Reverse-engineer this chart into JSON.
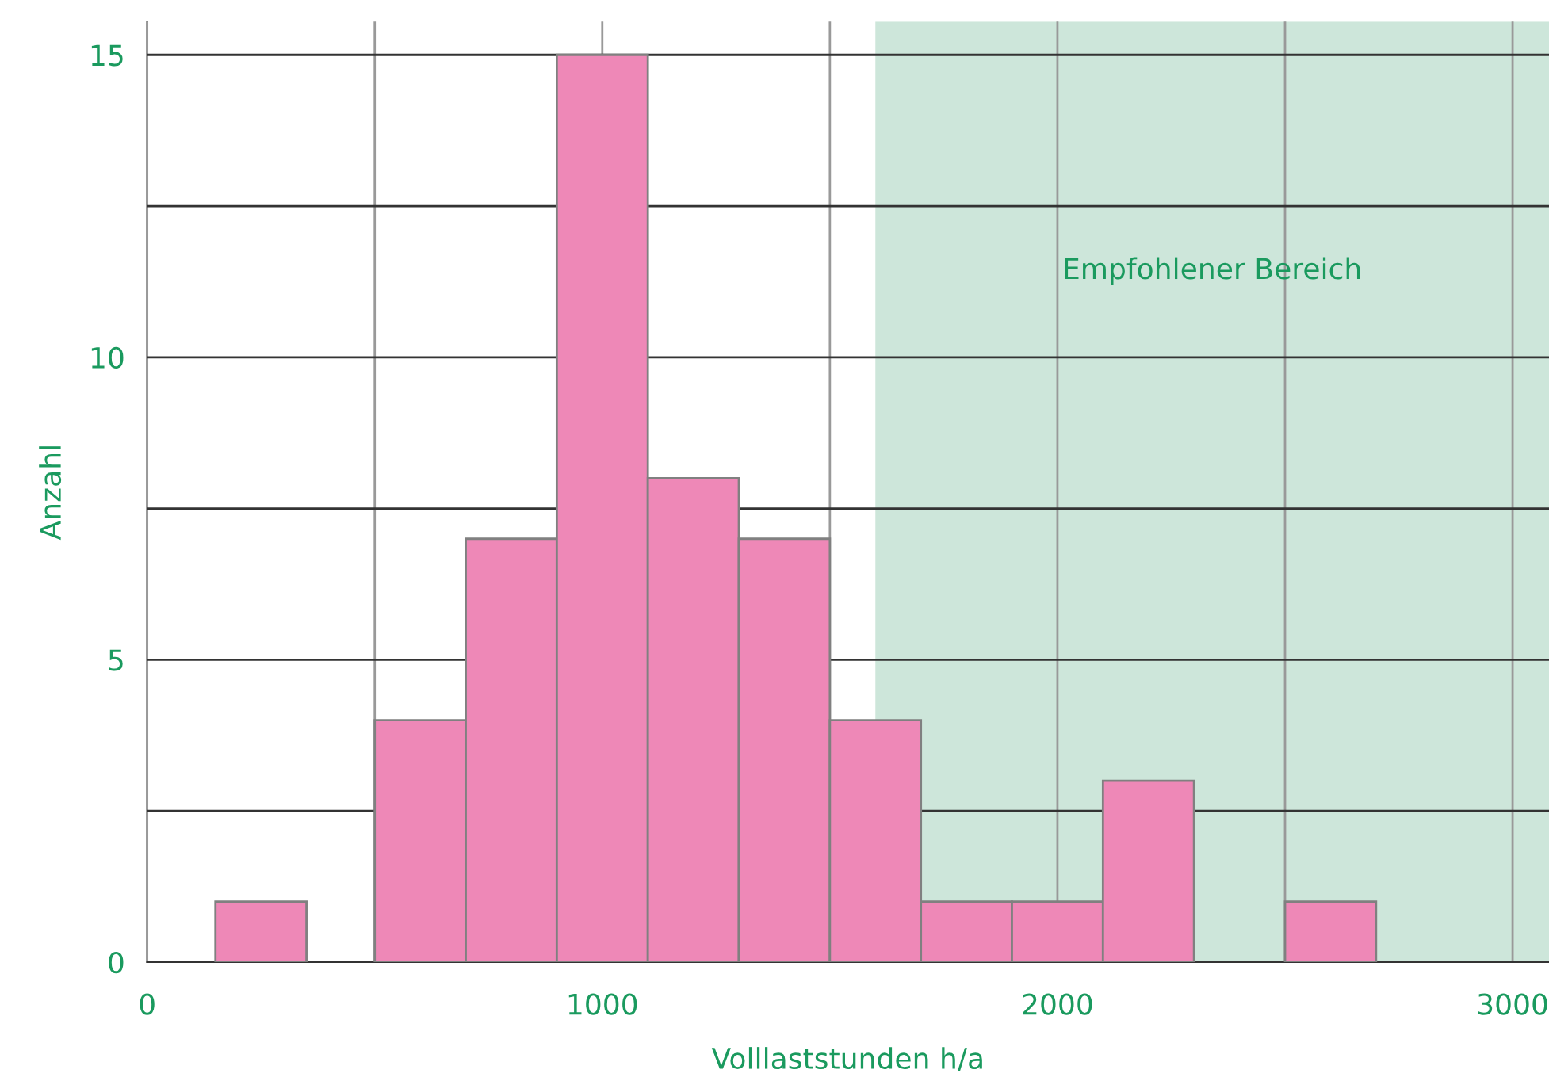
{
  "chart_data": {
    "type": "histogram",
    "xlabel": "Volllaststunden h/a",
    "ylabel": "Anzahl",
    "bins": [
      150,
      350,
      500,
      700,
      900,
      1100,
      1300,
      1500,
      1700,
      1900,
      2100,
      2300,
      2500,
      2700
    ],
    "values": [
      1,
      0,
      4,
      7,
      15,
      8,
      7,
      4,
      1,
      1,
      3,
      0,
      1
    ],
    "color": "#ee88b7",
    "xlim": [
      0,
      3080
    ],
    "ylim": [
      0,
      15.55
    ],
    "xticks": [
      0,
      {
        "value": 500,
        "label": null
      },
      1000,
      {
        "value": 1500,
        "label": null
      },
      2000,
      {
        "value": 2500,
        "label": null
      },
      3000
    ],
    "yticks": [
      0,
      {
        "value": 2.5,
        "label": null
      },
      5,
      {
        "value": 7.5,
        "label": null
      },
      10,
      {
        "value": 12.5,
        "label": null
      },
      15
    ],
    "bands": [
      {
        "axis": "x",
        "from": 1600,
        "to": 3080,
        "label": "Empfohlener Bereich",
        "color": "#cde6da"
      }
    ],
    "grid": true,
    "legend": false
  }
}
